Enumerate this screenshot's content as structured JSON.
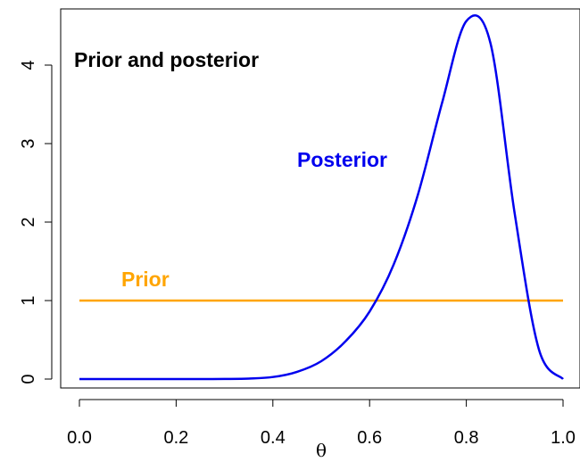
{
  "chart_data": {
    "type": "line",
    "title": "Prior and posterior",
    "xlabel": "θ",
    "ylabel": "",
    "xlim": [
      0,
      1
    ],
    "ylim": [
      -0.15,
      4.7
    ],
    "x_ticks": [
      "0.0",
      "0.2",
      "0.4",
      "0.6",
      "0.8",
      "1.0"
    ],
    "y_ticks": [
      "0",
      "1",
      "2",
      "3",
      "4"
    ],
    "grid": false,
    "series": [
      {
        "name": "Prior",
        "color": "#FFA500",
        "x": [
          0.0,
          1.0
        ],
        "y": [
          1.0,
          1.0
        ]
      },
      {
        "name": "Posterior",
        "color": "#0000EE",
        "x": [
          0.0,
          0.05,
          0.1,
          0.15,
          0.2,
          0.25,
          0.3,
          0.35,
          0.4,
          0.45,
          0.5,
          0.55,
          0.6,
          0.65,
          0.7,
          0.75,
          0.8,
          0.85,
          0.9,
          0.95,
          1.0
        ],
        "y": [
          0.0,
          0.0,
          0.0,
          0.0,
          0.0,
          0.0,
          0.001,
          0.006,
          0.026,
          0.092,
          0.227,
          0.479,
          0.86,
          1.462,
          2.351,
          3.522,
          4.56,
          4.277,
          2.11,
          0.38,
          0.0
        ]
      }
    ],
    "annotations": [
      {
        "text": "Prior",
        "color": "#FFA500"
      },
      {
        "text": "Posterior",
        "color": "#0000EE"
      }
    ]
  }
}
